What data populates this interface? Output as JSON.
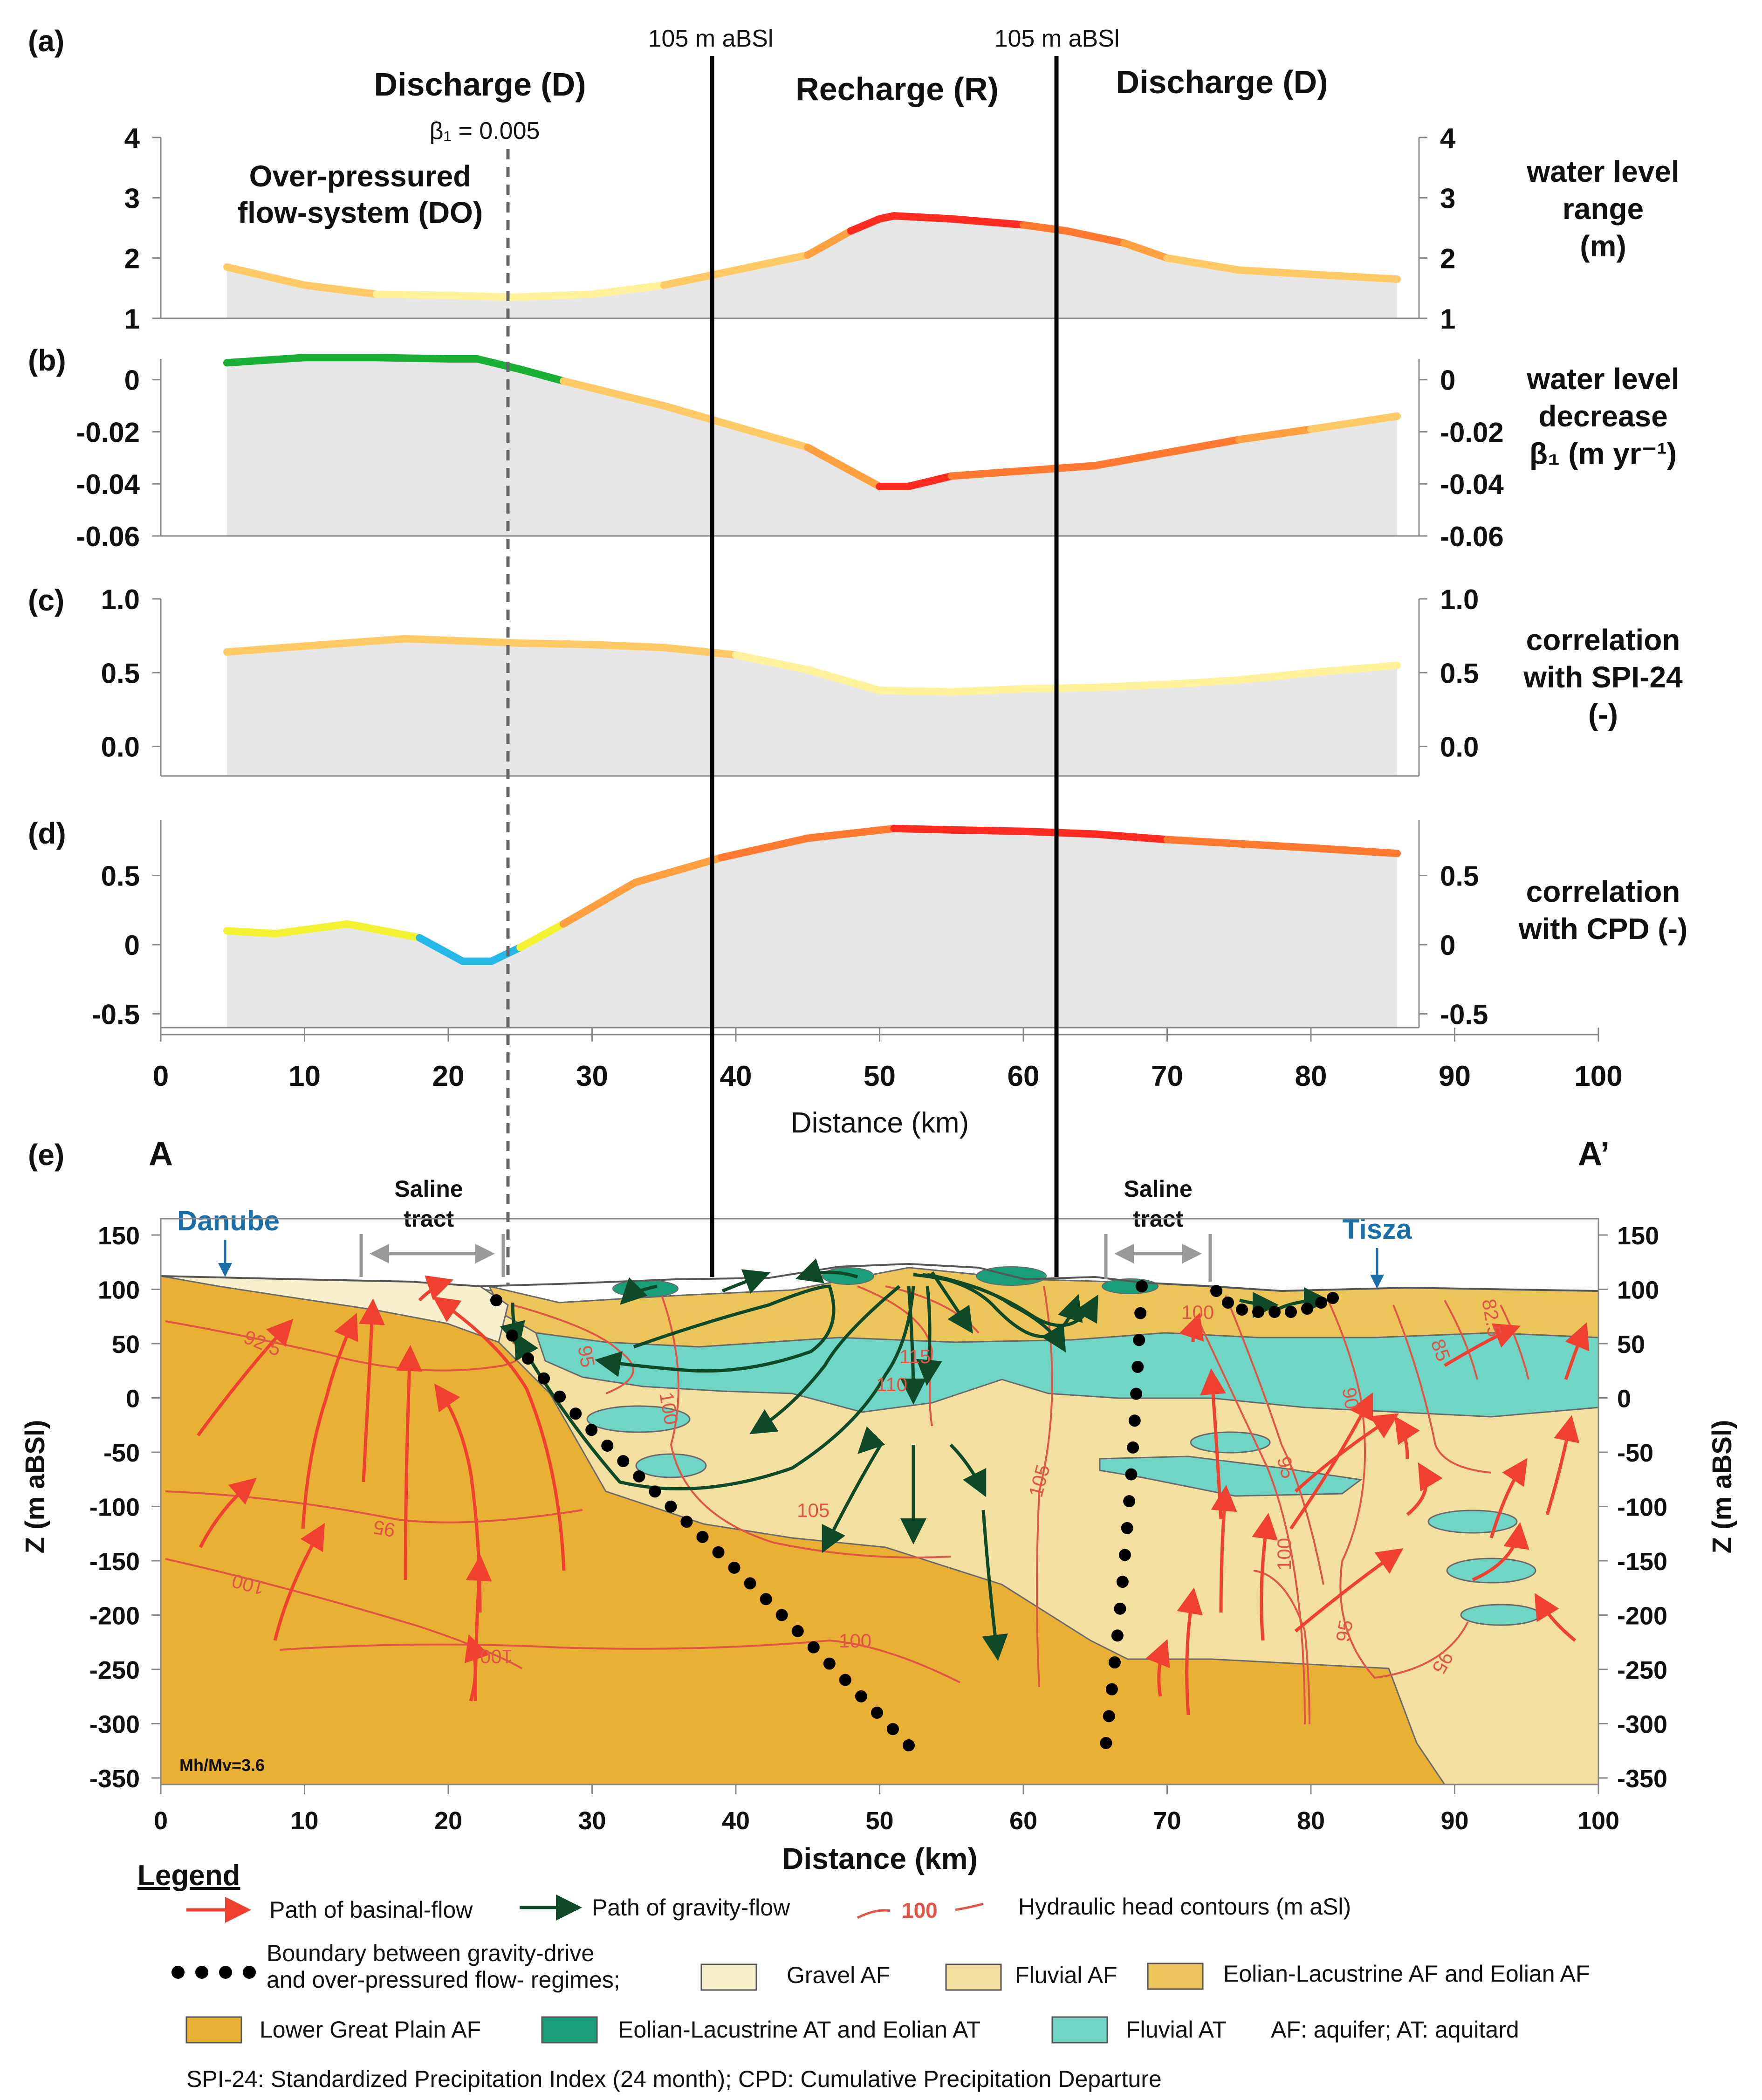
{
  "colors": {
    "panel_fill": "#e6e6e6",
    "very_low": "#fff199",
    "low": "#ffc966",
    "mid": "#ffa040",
    "high": "#ff7a30",
    "very_high": "#ff2a20",
    "green": "#19b035",
    "yellow": "#f2f233",
    "cyan": "#25b8e6",
    "basinal_arrow": "#f04030",
    "gravity_arrow": "#0f4a28",
    "contour": "#e05545",
    "gravel_af": "#f8efcc",
    "fluvial_af": "#f3dfa0",
    "eolian_lacustrine_af": "#ecc55a",
    "lower_great_plain_af": "#e8b035",
    "eolian_lacustrine_at": "#1a9e7a",
    "fluvial_at": "#6fd6c6",
    "river_label": "#1b6fa8"
  },
  "header": {
    "discharge_left": "Discharge (D)",
    "recharge": "Recharge (R)",
    "discharge_right": "Discharge (D)",
    "boundary_left": "105 m aBSl",
    "boundary_right": "105 m aBSl",
    "beta_marker": "β₁ = 0.005",
    "overpressured": [
      "Over-pressured",
      "flow-system (DO)"
    ]
  },
  "panels": [
    {
      "letter": "(a)",
      "label_lines": [
        "water level",
        "range",
        "(m)"
      ],
      "ylim": [
        1,
        4
      ],
      "ticks": [
        {
          "v": 1,
          "t": "1"
        },
        {
          "v": 2,
          "t": "2"
        },
        {
          "v": 3,
          "t": "3"
        },
        {
          "v": 4,
          "t": "4"
        }
      ],
      "x": [
        4.6,
        10,
        15,
        20,
        24.6,
        30,
        35,
        40,
        45,
        48,
        50,
        51,
        55,
        60,
        63,
        67,
        70,
        75,
        80,
        86
      ],
      "y": [
        1.85,
        1.55,
        1.4,
        1.38,
        1.35,
        1.4,
        1.55,
        1.8,
        2.05,
        2.45,
        2.65,
        2.7,
        2.65,
        2.55,
        2.45,
        2.25,
        2.0,
        1.8,
        1.73,
        1.65
      ],
      "colors": [
        "low",
        "low",
        "very_low",
        "very_low",
        "very_low",
        "very_low",
        "low",
        "low",
        "mid",
        "very_high",
        "very_high",
        "very_high",
        "very_high",
        "high",
        "high",
        "mid",
        "low",
        "low",
        "low"
      ]
    },
    {
      "letter": "(b)",
      "label_lines": [
        "water level",
        "decrease",
        "β₁ (m yr⁻¹)"
      ],
      "ylim": [
        -0.06,
        0.008
      ],
      "ticks": [
        {
          "v": 0,
          "t": "0"
        },
        {
          "v": -0.02,
          "t": "-0.02"
        },
        {
          "v": -0.04,
          "t": "-0.04"
        },
        {
          "v": -0.06,
          "t": "-0.06"
        }
      ],
      "x": [
        4.6,
        10,
        15,
        20,
        22,
        25,
        28,
        35,
        40,
        45,
        50,
        52,
        55,
        60,
        65,
        70,
        75,
        80,
        86
      ],
      "y": [
        0.0065,
        0.0085,
        0.0085,
        0.008,
        0.008,
        0.004,
        -0.0005,
        -0.01,
        -0.018,
        -0.026,
        -0.041,
        -0.041,
        -0.037,
        -0.035,
        -0.033,
        -0.028,
        -0.023,
        -0.019,
        -0.014
      ],
      "colors": [
        "green",
        "green",
        "green",
        "green",
        "green",
        "green",
        "low",
        "low",
        "low",
        "mid",
        "very_high",
        "very_high",
        "high",
        "high",
        "high",
        "high",
        "mid",
        "low"
      ]
    },
    {
      "letter": "(c)",
      "label_lines": [
        "correlation",
        "with SPI-24",
        "(-)"
      ],
      "ylim": [
        -0.2,
        1.0
      ],
      "ticks": [
        {
          "v": 1.0,
          "t": "1.0"
        },
        {
          "v": 0.5,
          "t": "0.5"
        },
        {
          "v": 0.0,
          "t": "0.0"
        }
      ],
      "x": [
        4.6,
        10,
        17,
        25,
        30,
        35,
        40,
        45,
        50,
        55,
        60,
        65,
        70,
        75,
        80,
        86
      ],
      "y": [
        0.64,
        0.68,
        0.73,
        0.7,
        0.69,
        0.67,
        0.62,
        0.52,
        0.38,
        0.37,
        0.39,
        0.4,
        0.42,
        0.45,
        0.5,
        0.55
      ],
      "colors": [
        "low",
        "low",
        "low",
        "low",
        "low",
        "low",
        "very_low",
        "very_low",
        "very_low",
        "very_low",
        "very_low",
        "very_low",
        "very_low",
        "very_low",
        "very_low"
      ]
    },
    {
      "letter": "(d)",
      "label_lines": [
        "correlation",
        "with CPD (-)"
      ],
      "ylim": [
        -0.6,
        0.9
      ],
      "ticks": [
        {
          "v": 0.5,
          "t": "0.5"
        },
        {
          "v": 0,
          "t": "0"
        },
        {
          "v": -0.5,
          "t": "-0.5"
        }
      ],
      "x": [
        4.6,
        8,
        13,
        18,
        21,
        23,
        25,
        28,
        33,
        39,
        45,
        51,
        55,
        60,
        65,
        70,
        75,
        80,
        86
      ],
      "y": [
        0.1,
        0.08,
        0.15,
        0.05,
        -0.12,
        -0.12,
        -0.02,
        0.15,
        0.45,
        0.63,
        0.77,
        0.84,
        0.83,
        0.82,
        0.8,
        0.76,
        0.73,
        0.7,
        0.66
      ],
      "colors": [
        "yellow",
        "yellow",
        "yellow",
        "cyan",
        "cyan",
        "cyan",
        "yellow",
        "mid",
        "mid",
        "high",
        "high",
        "very_high",
        "very_high",
        "very_high",
        "very_high",
        "high",
        "high",
        "high"
      ]
    }
  ],
  "top_axis": {
    "ticks": [
      "0",
      "10",
      "20",
      "30",
      "40",
      "50",
      "60",
      "70",
      "80",
      "90",
      "100"
    ],
    "label": "Distance (km)"
  },
  "section": {
    "letter": "(e)",
    "left_end": "A",
    "right_end": "A’",
    "ylabel": "Z (m aBSl)",
    "y_ticks": [
      "150",
      "100",
      "50",
      "0",
      "-50",
      "-100",
      "-150",
      "-200",
      "-250",
      "-300",
      "-350"
    ],
    "x_ticks": [
      "0",
      "10",
      "20",
      "30",
      "40",
      "50",
      "60",
      "70",
      "80",
      "90",
      "100"
    ],
    "xlabel": "Distance (km)",
    "rivers": [
      "Danube",
      "Tisza"
    ],
    "saline_tract": [
      "Saline",
      "tract"
    ],
    "ratio": "Mh/Mv=3.6",
    "contour_labels": [
      "92.5",
      "95",
      "100",
      "100",
      "95",
      "115",
      "110",
      "100",
      "105",
      "100",
      "105",
      "95",
      "90",
      "100",
      "95",
      "85",
      "82.5",
      "100",
      "95"
    ]
  },
  "legend": {
    "title": "Legend",
    "basinal": "Path of basinal-flow",
    "gravity": "Path of gravity-flow",
    "contour_value": "100",
    "contours": "Hydraulic head contours (m aSl)",
    "boundary": [
      "Boundary between gravity-drive",
      "and over-pressured flow- regimes;"
    ],
    "gravel_af": "Gravel AF",
    "fluvial_af": "Fluvial AF",
    "eolian_af": "Eolian-Lacustrine AF and Eolian AF",
    "lower_af": "Lower Great Plain AF",
    "eolian_at": "Eolian-Lacustrine AT and Eolian AT",
    "fluvial_at": "Fluvial AT",
    "abbrev": "AF: aquifer; AT: aquitard",
    "footnote": "SPI-24: Standardized Precipitation Index (24 month); CPD: Cumulative Precipitation Departure"
  }
}
